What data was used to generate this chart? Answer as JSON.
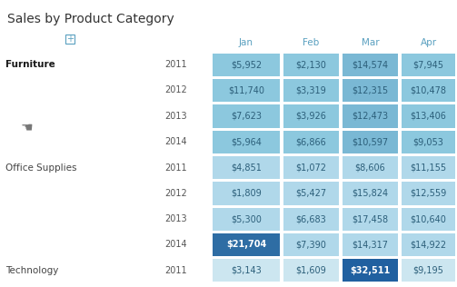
{
  "title": "Sales by Product Category",
  "columns": [
    "Jan",
    "Feb",
    "Mar",
    "Apr"
  ],
  "rows": [
    {
      "category": "Furniture",
      "bold": true,
      "year": "2011",
      "values": [
        "$5,952",
        "$2,130",
        "$14,574",
        "$7,945"
      ]
    },
    {
      "category": "",
      "bold": false,
      "year": "2012",
      "values": [
        "$11,740",
        "$3,319",
        "$12,315",
        "$10,478"
      ]
    },
    {
      "category": "",
      "bold": false,
      "year": "2013",
      "values": [
        "$7,623",
        "$3,926",
        "$12,473",
        "$13,406"
      ]
    },
    {
      "category": "",
      "bold": false,
      "year": "2014",
      "values": [
        "$5,964",
        "$6,866",
        "$10,597",
        "$9,053"
      ]
    },
    {
      "category": "Office Supplies",
      "bold": false,
      "year": "2011",
      "values": [
        "$4,851",
        "$1,072",
        "$8,606",
        "$11,155"
      ]
    },
    {
      "category": "",
      "bold": false,
      "year": "2012",
      "values": [
        "$1,809",
        "$5,427",
        "$15,824",
        "$12,559"
      ]
    },
    {
      "category": "",
      "bold": false,
      "year": "2013",
      "values": [
        "$5,300",
        "$6,683",
        "$17,458",
        "$10,640"
      ]
    },
    {
      "category": "",
      "bold": false,
      "year": "2014",
      "values": [
        "$21,704",
        "$7,390",
        "$14,317",
        "$14,922"
      ]
    },
    {
      "category": "Technology",
      "bold": false,
      "year": "2011",
      "values": [
        "$3,143",
        "$1,609",
        "$32,511",
        "$9,195"
      ]
    }
  ],
  "cell_colors": [
    [
      "#8cc8de",
      "#8cc8de",
      "#7ab8d4",
      "#8cc8de"
    ],
    [
      "#8cc8de",
      "#8cc8de",
      "#7ab8d4",
      "#8cc8de"
    ],
    [
      "#8cc8de",
      "#8cc8de",
      "#7ab8d4",
      "#8cc8de"
    ],
    [
      "#8cc8de",
      "#8cc8de",
      "#7ab8d4",
      "#8cc8de"
    ],
    [
      "#b0d8ea",
      "#b0d8ea",
      "#b0d8ea",
      "#b0d8ea"
    ],
    [
      "#b0d8ea",
      "#b0d8ea",
      "#b0d8ea",
      "#b0d8ea"
    ],
    [
      "#b0d8ea",
      "#b0d8ea",
      "#b0d8ea",
      "#b0d8ea"
    ],
    [
      "#2e6da4",
      "#b0d8ea",
      "#b0d8ea",
      "#b0d8ea"
    ],
    [
      "#cce6f0",
      "#cce6f0",
      "#2060a0",
      "#cce6f0"
    ]
  ],
  "text_colors": [
    [
      "#2c5f7a",
      "#2c5f7a",
      "#2c5f7a",
      "#2c5f7a"
    ],
    [
      "#2c5f7a",
      "#2c5f7a",
      "#2c5f7a",
      "#2c5f7a"
    ],
    [
      "#2c5f7a",
      "#2c5f7a",
      "#2c5f7a",
      "#2c5f7a"
    ],
    [
      "#2c5f7a",
      "#2c5f7a",
      "#2c5f7a",
      "#2c5f7a"
    ],
    [
      "#2c5f7a",
      "#2c5f7a",
      "#2c5f7a",
      "#2c5f7a"
    ],
    [
      "#2c5f7a",
      "#2c5f7a",
      "#2c5f7a",
      "#2c5f7a"
    ],
    [
      "#2c5f7a",
      "#2c5f7a",
      "#2c5f7a",
      "#2c5f7a"
    ],
    [
      "#ffffff",
      "#2c5f7a",
      "#2c5f7a",
      "#2c5f7a"
    ],
    [
      "#2c5f7a",
      "#2c5f7a",
      "#ffffff",
      "#2c5f7a"
    ]
  ],
  "header_text_color": "#5aA0c0",
  "bg_color": "#ffffff",
  "title_fontsize": 10,
  "col_header_fontsize": 7.5,
  "cell_fontsize": 7,
  "category_fontsize": 7.5,
  "year_fontsize": 7,
  "plus_box_color": "#5aA0c0"
}
